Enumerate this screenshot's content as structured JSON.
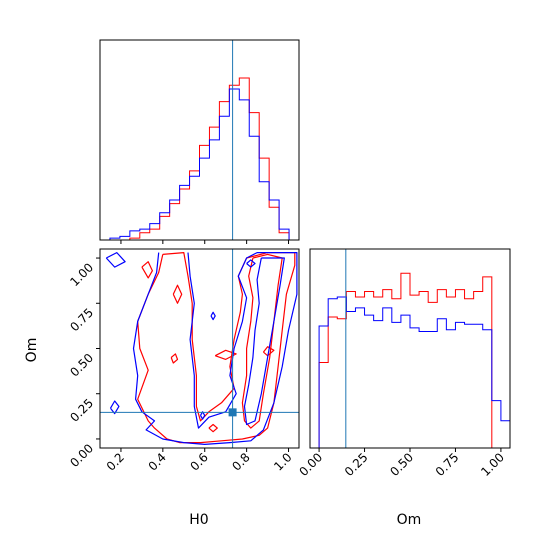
{
  "chart_data": {
    "type": "corner",
    "params": [
      "H0",
      "Om"
    ],
    "truth": {
      "H0": 0.733,
      "Om": 0.147
    },
    "series_colors": {
      "series_1": "#ff0000",
      "series_2": "#0000ff"
    },
    "truth_color": "#1f77b4",
    "panels": [
      {
        "id": "hist_H0",
        "type": "histogram",
        "param": "H0",
        "xlim": [
          0.1,
          1.05
        ],
        "show_tick_labels": false,
        "bins": [
          0.1,
          0.1475,
          0.195,
          0.2425,
          0.29,
          0.3375,
          0.385,
          0.4325,
          0.48,
          0.5275,
          0.575,
          0.6225,
          0.67,
          0.7175,
          0.765,
          0.8125,
          0.86,
          0.9075,
          0.955,
          1.0025,
          1.05
        ],
        "series": [
          {
            "color": "#ff0000",
            "values": [
              0.0,
              0.0,
              0.0,
              0.01,
              0.04,
              0.06,
              0.13,
              0.2,
              0.28,
              0.38,
              0.52,
              0.62,
              0.76,
              0.85,
              0.89,
              0.7,
              0.45,
              0.18,
              0.04,
              0.0
            ]
          },
          {
            "color": "#0000ff",
            "values": [
              0.0,
              0.01,
              0.02,
              0.05,
              0.06,
              0.09,
              0.15,
              0.22,
              0.3,
              0.35,
              0.45,
              0.55,
              0.68,
              0.83,
              0.77,
              0.57,
              0.32,
              0.22,
              0.06,
              0.0
            ]
          }
        ]
      },
      {
        "id": "contour_H0_Om",
        "type": "contour",
        "xparam": "H0",
        "yparam": "Om",
        "xlim": [
          0.1,
          1.05
        ],
        "ylim": [
          -0.05,
          1.05
        ],
        "xticks": [
          0.2,
          0.4,
          0.6,
          0.8,
          1.0
        ],
        "xtick_labels": [
          "0.2",
          "0.4",
          "0.6",
          "0.8",
          "1.0"
        ],
        "yticks": [
          0.0,
          0.25,
          0.5,
          0.75,
          1.0
        ],
        "ytick_labels": [
          "0.00",
          "0.25",
          "0.50",
          "0.75",
          "1.00"
        ],
        "xlabel": "H0",
        "ylabel": "Om",
        "contours": [
          {
            "color": "#ff0000",
            "points": [
              [
                0.4,
                1.02
              ],
              [
                0.38,
                0.92
              ],
              [
                0.33,
                0.8
              ],
              [
                0.28,
                0.65
              ],
              [
                0.29,
                0.5
              ],
              [
                0.33,
                0.38
              ],
              [
                0.28,
                0.22
              ],
              [
                0.33,
                0.1
              ],
              [
                0.36,
                0.06
              ],
              [
                0.42,
                0.0
              ],
              [
                0.48,
                -0.02
              ],
              [
                0.58,
                -0.02
              ],
              [
                0.68,
                -0.01
              ],
              [
                0.78,
                0.0
              ],
              [
                0.86,
                0.02
              ],
              [
                0.9,
                0.06
              ],
              [
                0.93,
                0.2
              ],
              [
                0.95,
                0.4
              ],
              [
                0.97,
                0.6
              ],
              [
                0.99,
                0.8
              ],
              [
                1.03,
                0.96
              ],
              [
                1.03,
                1.03
              ],
              [
                0.9,
                1.03
              ],
              [
                0.8,
                1.0
              ],
              [
                0.76,
                0.9
              ],
              [
                0.78,
                0.8
              ],
              [
                0.77,
                0.7
              ],
              [
                0.74,
                0.55
              ],
              [
                0.72,
                0.4
              ],
              [
                0.74,
                0.28
              ],
              [
                0.68,
                0.2
              ],
              [
                0.62,
                0.15
              ],
              [
                0.58,
                0.1
              ],
              [
                0.56,
                0.18
              ],
              [
                0.56,
                0.35
              ],
              [
                0.54,
                0.55
              ],
              [
                0.54,
                0.75
              ],
              [
                0.52,
                0.9
              ],
              [
                0.5,
                1.03
              ],
              [
                0.4,
                1.02
              ]
            ]
          },
          {
            "color": "#ff0000",
            "points": [
              [
                0.83,
                1.0
              ],
              [
                0.81,
                0.9
              ],
              [
                0.83,
                0.78
              ],
              [
                0.82,
                0.65
              ],
              [
                0.8,
                0.5
              ],
              [
                0.8,
                0.35
              ],
              [
                0.78,
                0.2
              ],
              [
                0.79,
                0.1
              ],
              [
                0.82,
                0.06
              ],
              [
                0.86,
                0.1
              ],
              [
                0.88,
                0.25
              ],
              [
                0.91,
                0.45
              ],
              [
                0.93,
                0.65
              ],
              [
                0.95,
                0.85
              ],
              [
                0.97,
                1.0
              ],
              [
                0.9,
                1.02
              ],
              [
                0.83,
                1.0
              ]
            ]
          },
          {
            "color": "#ff0000",
            "points": [
              [
                0.3,
                0.95
              ],
              [
                0.33,
                0.98
              ],
              [
                0.35,
                0.93
              ],
              [
                0.33,
                0.89
              ],
              [
                0.3,
                0.95
              ]
            ]
          },
          {
            "color": "#ff0000",
            "points": [
              [
                0.45,
                0.8
              ],
              [
                0.47,
                0.85
              ],
              [
                0.49,
                0.8
              ],
              [
                0.47,
                0.75
              ],
              [
                0.45,
                0.8
              ]
            ]
          },
          {
            "color": "#ff0000",
            "points": [
              [
                0.44,
                0.45
              ],
              [
                0.46,
                0.47
              ],
              [
                0.47,
                0.44
              ],
              [
                0.45,
                0.42
              ],
              [
                0.44,
                0.45
              ]
            ]
          },
          {
            "color": "#ff0000",
            "points": [
              [
                0.65,
                0.46
              ],
              [
                0.7,
                0.49
              ],
              [
                0.75,
                0.47
              ],
              [
                0.7,
                0.44
              ],
              [
                0.65,
                0.46
              ]
            ]
          },
          {
            "color": "#ff0000",
            "points": [
              [
                0.88,
                0.48
              ],
              [
                0.9,
                0.51
              ],
              [
                0.93,
                0.49
              ],
              [
                0.9,
                0.46
              ],
              [
                0.88,
                0.48
              ]
            ]
          },
          {
            "color": "#ff0000",
            "points": [
              [
                0.62,
                0.06
              ],
              [
                0.64,
                0.08
              ],
              [
                0.66,
                0.06
              ],
              [
                0.64,
                0.04
              ],
              [
                0.62,
                0.06
              ]
            ]
          },
          {
            "color": "#0000ff",
            "points": [
              [
                0.38,
                1.03
              ],
              [
                0.37,
                0.92
              ],
              [
                0.33,
                0.8
              ],
              [
                0.28,
                0.65
              ],
              [
                0.26,
                0.5
              ],
              [
                0.28,
                0.35
              ],
              [
                0.27,
                0.22
              ],
              [
                0.3,
                0.15
              ],
              [
                0.36,
                0.1
              ],
              [
                0.32,
                0.05
              ],
              [
                0.4,
                0.0
              ],
              [
                0.5,
                -0.02
              ],
              [
                0.6,
                -0.03
              ],
              [
                0.72,
                -0.02
              ],
              [
                0.82,
                -0.01
              ],
              [
                0.88,
                0.05
              ],
              [
                0.93,
                0.2
              ],
              [
                0.97,
                0.4
              ],
              [
                1.0,
                0.6
              ],
              [
                1.04,
                0.8
              ],
              [
                1.04,
                1.03
              ],
              [
                0.85,
                1.03
              ],
              [
                0.8,
                1.0
              ],
              [
                0.76,
                0.9
              ],
              [
                0.8,
                0.78
              ],
              [
                0.78,
                0.65
              ],
              [
                0.74,
                0.5
              ],
              [
                0.72,
                0.35
              ],
              [
                0.75,
                0.25
              ],
              [
                0.7,
                0.15
              ],
              [
                0.62,
                0.12
              ],
              [
                0.57,
                0.06
              ],
              [
                0.55,
                0.18
              ],
              [
                0.55,
                0.35
              ],
              [
                0.53,
                0.55
              ],
              [
                0.55,
                0.75
              ],
              [
                0.53,
                0.9
              ],
              [
                0.52,
                1.03
              ]
            ]
          },
          {
            "color": "#0000ff",
            "points": [
              [
                0.87,
                1.0
              ],
              [
                0.85,
                0.88
              ],
              [
                0.86,
                0.75
              ],
              [
                0.84,
                0.6
              ],
              [
                0.83,
                0.45
              ],
              [
                0.81,
                0.3
              ],
              [
                0.79,
                0.18
              ],
              [
                0.8,
                0.08
              ],
              [
                0.84,
                0.1
              ],
              [
                0.87,
                0.25
              ],
              [
                0.9,
                0.45
              ],
              [
                0.93,
                0.65
              ],
              [
                0.96,
                0.85
              ],
              [
                0.98,
                1.0
              ],
              [
                0.87,
                1.0
              ]
            ]
          },
          {
            "color": "#0000ff",
            "points": [
              [
                0.13,
                1.0
              ],
              [
                0.18,
                1.03
              ],
              [
                0.22,
                0.98
              ],
              [
                0.17,
                0.95
              ],
              [
                0.13,
                1.0
              ]
            ]
          },
          {
            "color": "#0000ff",
            "points": [
              [
                0.15,
                0.17
              ],
              [
                0.17,
                0.21
              ],
              [
                0.19,
                0.18
              ],
              [
                0.17,
                0.14
              ],
              [
                0.15,
                0.17
              ]
            ]
          },
          {
            "color": "#0000ff",
            "points": [
              [
                0.58,
                0.13
              ],
              [
                0.59,
                0.15
              ],
              [
                0.6,
                0.13
              ],
              [
                0.59,
                0.11
              ],
              [
                0.58,
                0.13
              ]
            ]
          },
          {
            "color": "#0000ff",
            "points": [
              [
                0.63,
                0.68
              ],
              [
                0.64,
                0.7
              ],
              [
                0.65,
                0.68
              ],
              [
                0.64,
                0.66
              ],
              [
                0.63,
                0.68
              ]
            ]
          },
          {
            "color": "#0000ff",
            "points": [
              [
                0.8,
                0.97
              ],
              [
                0.82,
                0.99
              ],
              [
                0.84,
                0.97
              ],
              [
                0.82,
                0.95
              ],
              [
                0.8,
                0.97
              ]
            ]
          }
        ]
      },
      {
        "id": "hist_Om",
        "type": "histogram",
        "param": "Om",
        "xlim": [
          -0.05,
          1.05
        ],
        "xticks": [
          0.0,
          0.25,
          0.5,
          0.75,
          1.0
        ],
        "xtick_labels": [
          "0.00",
          "0.25",
          "0.50",
          "0.75",
          "1.00"
        ],
        "xlabel": "Om",
        "bins": [
          -0.05,
          0.0,
          0.05,
          0.1,
          0.15,
          0.2,
          0.25,
          0.3,
          0.35,
          0.4,
          0.45,
          0.5,
          0.55,
          0.6,
          0.65,
          0.7,
          0.75,
          0.8,
          0.85,
          0.9,
          0.95,
          1.0,
          1.05
        ],
        "series": [
          {
            "color": "#ff0000",
            "values": [
              0.0,
              0.47,
              0.72,
              0.71,
              0.86,
              0.83,
              0.86,
              0.83,
              0.87,
              0.82,
              0.96,
              0.84,
              0.86,
              0.8,
              0.87,
              0.83,
              0.87,
              0.82,
              0.86,
              0.94,
              0.0,
              0.0
            ]
          },
          {
            "color": "#0000ff",
            "values": [
              0.0,
              0.67,
              0.82,
              0.83,
              0.75,
              0.77,
              0.73,
              0.7,
              0.77,
              0.69,
              0.73,
              0.66,
              0.64,
              0.64,
              0.71,
              0.65,
              0.69,
              0.68,
              0.68,
              0.65,
              0.26,
              0.15
            ]
          }
        ]
      }
    ]
  }
}
